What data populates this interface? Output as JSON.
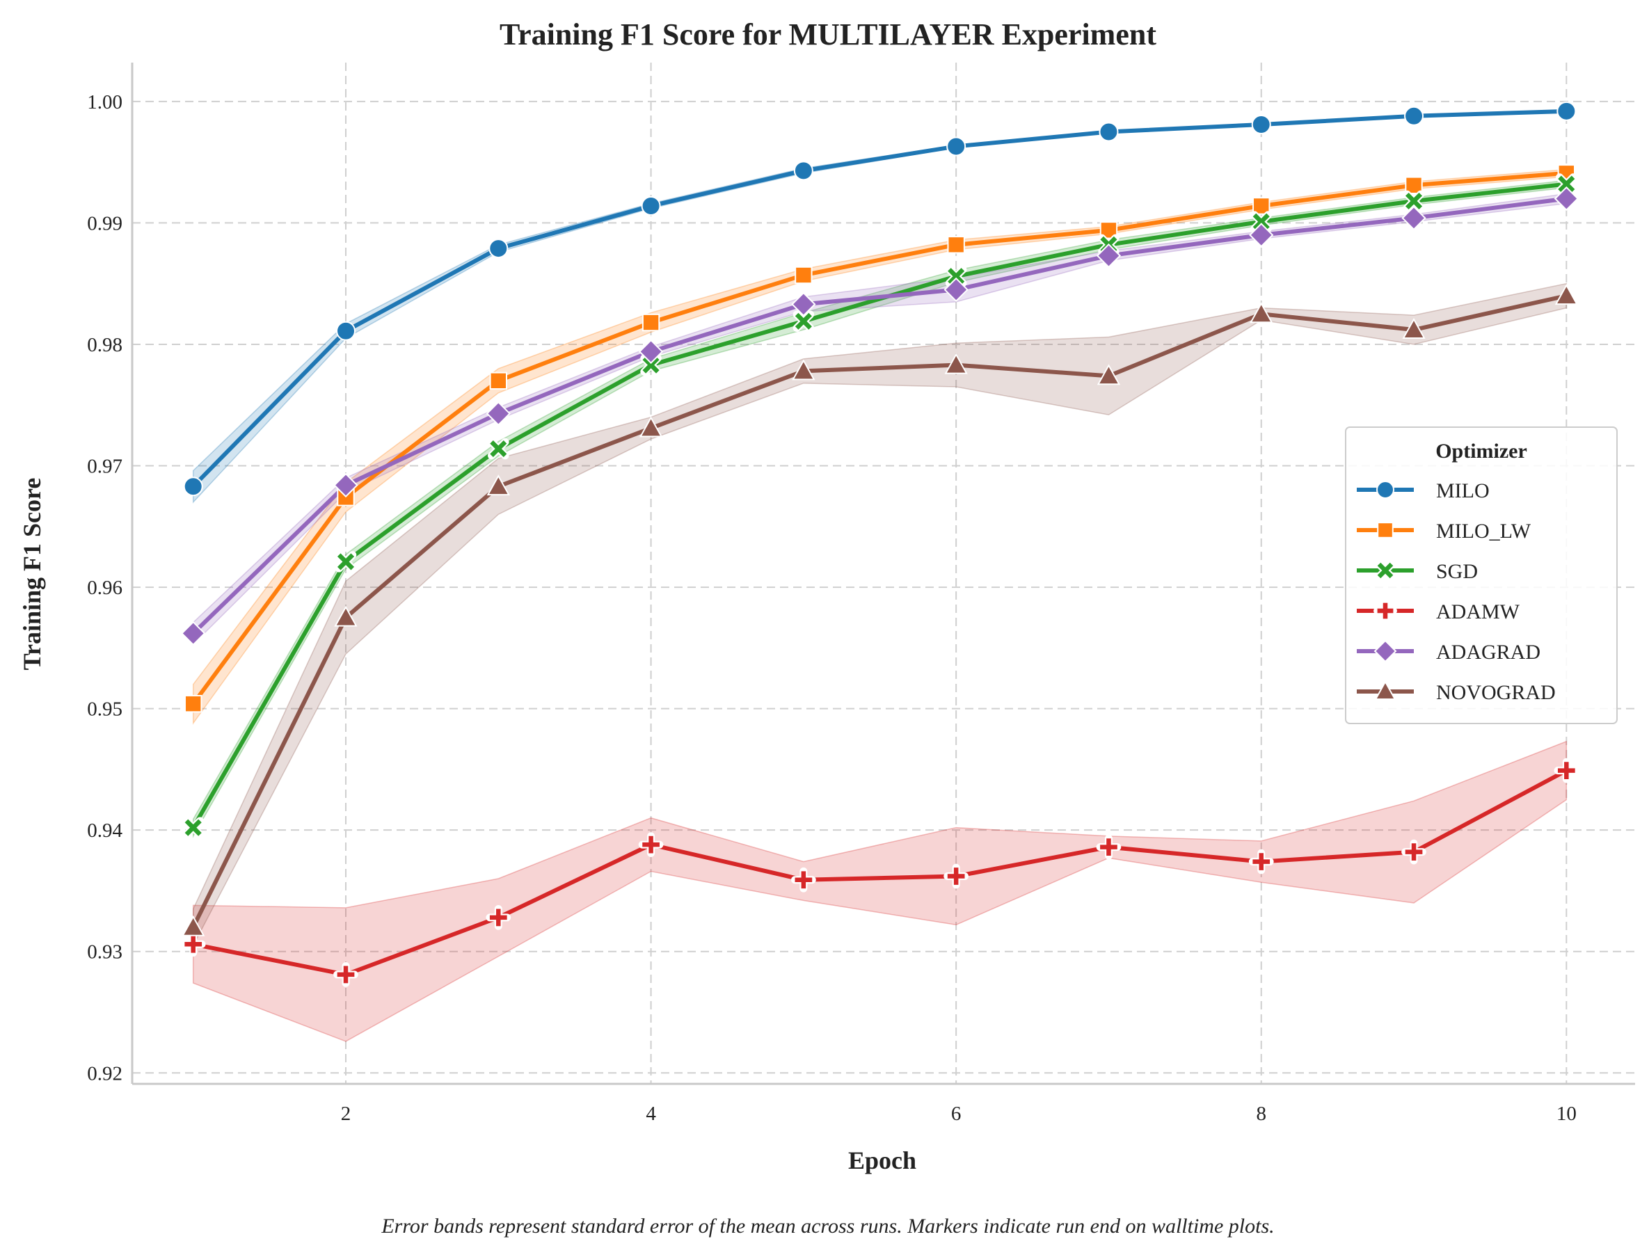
{
  "chart_data": {
    "type": "line",
    "title": "Training F1 Score for MULTILAYER Experiment",
    "xlabel": "Epoch",
    "ylabel": "Training F1 Score",
    "caption": "Error bands represent standard error of the mean across runs. Markers indicate run end on walltime plots.",
    "xlim": [
      0.6,
      10.45
    ],
    "ylim": [
      0.9191,
      1.0032
    ],
    "xticks": [
      2,
      4,
      6,
      8,
      10
    ],
    "xtick_labels": [
      "2",
      "4",
      "6",
      "8",
      "10"
    ],
    "yticks": [
      0.92,
      0.93,
      0.94,
      0.95,
      0.96,
      0.97,
      0.98,
      0.99,
      1.0
    ],
    "ytick_labels": [
      "0.92",
      "0.93",
      "0.94",
      "0.95",
      "0.96",
      "0.97",
      "0.98",
      "0.99",
      "1.00"
    ],
    "grid": true,
    "legend": {
      "title": "Optimizer",
      "placement": "center-right"
    },
    "x": [
      1,
      2,
      3,
      4,
      5,
      6,
      7,
      8,
      9,
      10
    ],
    "series": [
      {
        "name": "MILO",
        "color": "#1f77b4",
        "marker": "circle",
        "values": [
          0.9683,
          0.9811,
          0.9879,
          0.9914,
          0.9943,
          0.9963,
          0.9975,
          0.9981,
          0.9988,
          0.9992
        ],
        "lower": [
          0.967,
          0.9805,
          0.9876,
          0.9912,
          0.9941,
          0.9962,
          0.9974,
          0.998,
          0.9987,
          0.9991
        ],
        "upper": [
          0.9696,
          0.9817,
          0.9882,
          0.9916,
          0.9945,
          0.9964,
          0.9976,
          0.9982,
          0.9989,
          0.9993
        ]
      },
      {
        "name": "MILO_LW",
        "color": "#ff7f0e",
        "marker": "square",
        "values": [
          0.9504,
          0.9674,
          0.977,
          0.9818,
          0.9857,
          0.9882,
          0.9894,
          0.9914,
          0.9931,
          0.9941
        ],
        "lower": [
          0.9488,
          0.9662,
          0.976,
          0.981,
          0.9852,
          0.9878,
          0.9891,
          0.9911,
          0.9928,
          0.9938
        ],
        "upper": [
          0.952,
          0.9686,
          0.978,
          0.9826,
          0.9862,
          0.9886,
          0.9897,
          0.9917,
          0.9934,
          0.9944
        ]
      },
      {
        "name": "SGD",
        "color": "#2ca02c",
        "marker": "x",
        "values": [
          0.9402,
          0.9621,
          0.9714,
          0.9783,
          0.9819,
          0.9856,
          0.9882,
          0.9901,
          0.9918,
          0.9932
        ],
        "lower": [
          0.9395,
          0.9615,
          0.9708,
          0.9778,
          0.9812,
          0.9851,
          0.9878,
          0.9898,
          0.9915,
          0.9929
        ],
        "upper": [
          0.9409,
          0.9627,
          0.972,
          0.9788,
          0.9826,
          0.9861,
          0.9886,
          0.9904,
          0.9921,
          0.9935
        ]
      },
      {
        "name": "ADAMW",
        "color": "#d62728",
        "marker": "plus",
        "values": [
          0.9306,
          0.9281,
          0.9328,
          0.9388,
          0.9359,
          0.9362,
          0.9386,
          0.9374,
          0.9382,
          0.9449
        ],
        "lower": [
          0.9274,
          0.9226,
          0.9296,
          0.9366,
          0.9342,
          0.9322,
          0.9377,
          0.9357,
          0.934,
          0.9425
        ],
        "upper": [
          0.9338,
          0.9336,
          0.936,
          0.941,
          0.9374,
          0.9402,
          0.9395,
          0.9391,
          0.9424,
          0.9473
        ]
      },
      {
        "name": "ADAGRAD",
        "color": "#9467bd",
        "marker": "diamond",
        "values": [
          0.9562,
          0.9684,
          0.9743,
          0.9794,
          0.9833,
          0.9845,
          0.9873,
          0.989,
          0.9904,
          0.992
        ],
        "lower": [
          0.9553,
          0.9678,
          0.9738,
          0.979,
          0.9827,
          0.9835,
          0.9869,
          0.9887,
          0.9901,
          0.9916
        ],
        "upper": [
          0.9571,
          0.969,
          0.9748,
          0.9798,
          0.9839,
          0.9855,
          0.9877,
          0.9893,
          0.9907,
          0.9924
        ]
      },
      {
        "name": "NOVOGRAD",
        "color": "#8c564b",
        "marker": "triangle",
        "values": [
          0.932,
          0.9575,
          0.9683,
          0.9731,
          0.9778,
          0.9783,
          0.9774,
          0.9825,
          0.9812,
          0.984
        ],
        "lower": [
          0.9305,
          0.9545,
          0.966,
          0.9722,
          0.9768,
          0.9765,
          0.9742,
          0.982,
          0.98,
          0.983
        ],
        "upper": [
          0.9335,
          0.9605,
          0.9706,
          0.974,
          0.9788,
          0.9801,
          0.9806,
          0.983,
          0.9824,
          0.985
        ]
      }
    ]
  }
}
